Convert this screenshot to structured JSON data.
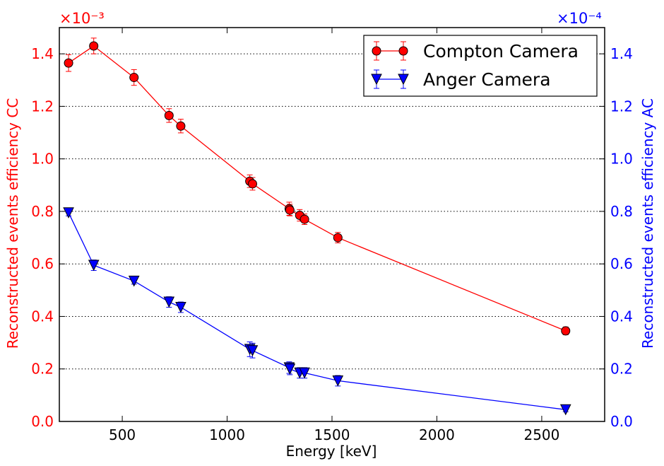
{
  "colors": {
    "left_axis": "#ff0000",
    "right_axis": "#0000ff",
    "compton_series": "#ff0000",
    "anger_series": "#0000ff",
    "grid": "#000000",
    "frame": "#000000"
  },
  "chart_data": {
    "type": "line",
    "xlabel": "Energy [keV]",
    "ylabel_left": "Reconstructed events efficiency CC",
    "ylabel_right": "Reconstructed events efficiency AC",
    "left_scale_label": "×10⁻³",
    "right_scale_label": "×10⁻⁴",
    "xlim": [
      200,
      2800
    ],
    "ylim_left": [
      0,
      1.5
    ],
    "ylim_right": [
      0,
      1.5
    ],
    "x_ticks": [
      500,
      1000,
      1500,
      2000,
      2500
    ],
    "x_tick_labels": [
      "500",
      "1000",
      "1500",
      "2000",
      "2500"
    ],
    "y_ticks": [
      0,
      0.2,
      0.4,
      0.6,
      0.8,
      1.0,
      1.2,
      1.4
    ],
    "y_tick_labels": [
      "0.0",
      "0.2",
      "0.4",
      "0.6",
      "0.8",
      "1.0",
      "1.2",
      "1.4"
    ],
    "grid": "horizontal dotted",
    "legend_position": "top-right",
    "series": [
      {
        "name": "Compton Camera",
        "axis": "left",
        "marker": "circle",
        "x": [
          244,
          364,
          556,
          723,
          779,
          1108,
          1121,
          1296,
          1299,
          1346,
          1369,
          1528,
          2614
        ],
        "y": [
          1.365,
          1.43,
          1.31,
          1.165,
          1.125,
          0.915,
          0.905,
          0.81,
          0.805,
          0.785,
          0.77,
          0.7,
          0.345
        ],
        "err": [
          0.032,
          0.03,
          0.03,
          0.026,
          0.026,
          0.024,
          0.024,
          0.025,
          0.022,
          0.022,
          0.02,
          0.02,
          0.015
        ]
      },
      {
        "name": "Anger Camera",
        "axis": "right",
        "marker": "triangle-down",
        "x": [
          244,
          364,
          556,
          723,
          779,
          1108,
          1121,
          1296,
          1299,
          1346,
          1369,
          1528,
          2614
        ],
        "y": [
          0.795,
          0.595,
          0.535,
          0.455,
          0.435,
          0.275,
          0.27,
          0.205,
          0.2,
          0.185,
          0.185,
          0.155,
          0.045
        ],
        "err": [
          0.012,
          0.02,
          0.012,
          0.02,
          0.02,
          0.028,
          0.028,
          0.022,
          0.022,
          0.02,
          0.02,
          0.02,
          0.008
        ]
      }
    ]
  }
}
